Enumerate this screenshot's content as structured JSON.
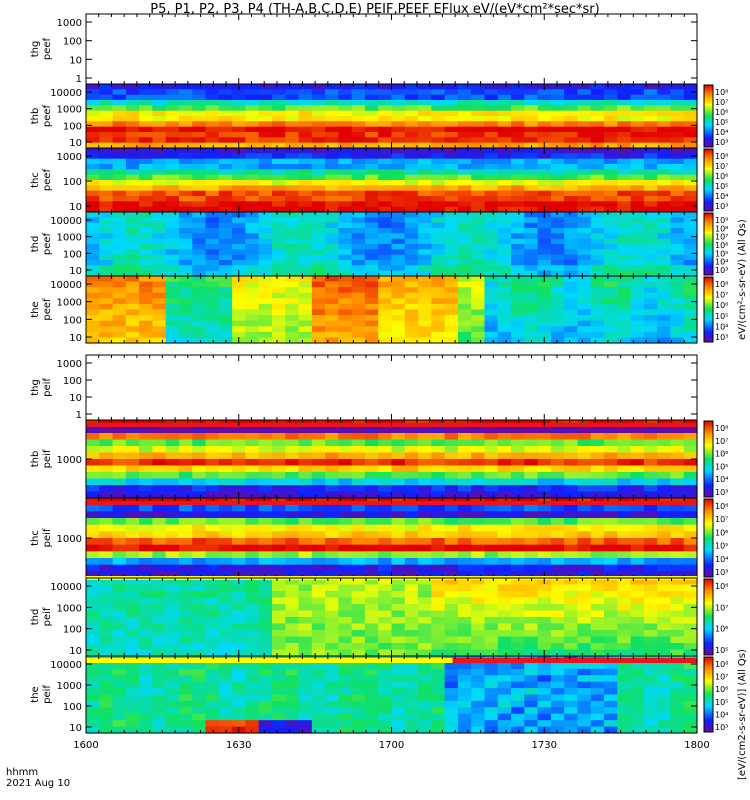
{
  "title": "P5, P1, P2, P3, P4 (TH-A,B,C,D,E) PEIF,PEEF EFlux eV/(eV*cm²*sec*sr)",
  "corner": {
    "var_label": "hhmm",
    "date_label": "2021 Aug 10"
  },
  "colorbar_text": {
    "peef_right": "eV/(cm²-s-sr-eV) (All Qs)",
    "peif_right": "[eV/(cm2-s-sr-eV)] (All Qs)"
  },
  "chart_data": {
    "type": "heatmap",
    "xlabel": "",
    "x_ticks": [
      "1600",
      "1630",
      "1700",
      "1730",
      "1800"
    ],
    "panels": [
      {
        "id": "thg-peef",
        "ylabel": [
          "thg",
          "peef"
        ],
        "yticks": [
          "1000",
          "100",
          "10",
          "1"
        ],
        "has_data": false,
        "colorbar": false
      },
      {
        "id": "thb-peef",
        "ylabel": [
          "thb",
          "peef"
        ],
        "yticks": [
          "10000",
          "1000",
          "100",
          "10"
        ],
        "has_data": true,
        "colorbar": true,
        "cb_ticks": [
          "10⁸",
          "10⁷",
          "10⁶",
          "10⁵",
          "10⁴",
          "10³"
        ]
      },
      {
        "id": "thc-peef",
        "ylabel": [
          "thc",
          "peef"
        ],
        "yticks": [
          "1000",
          "100",
          "10"
        ],
        "has_data": true,
        "colorbar": true,
        "cb_ticks": [
          "10⁸",
          "10⁷",
          "10⁶",
          "10⁵",
          "10⁴",
          "10³"
        ]
      },
      {
        "id": "thd-peef",
        "ylabel": [
          "thd",
          "peef"
        ],
        "yticks": [
          "10000",
          "1000",
          "100",
          "10"
        ],
        "has_data": true,
        "colorbar": true,
        "cb_ticks": [
          "10⁹",
          "10⁸",
          "10⁷",
          "10⁶",
          "10⁵",
          "10⁴",
          "10³"
        ]
      },
      {
        "id": "the-peef",
        "ylabel": [
          "the",
          "peef"
        ],
        "yticks": [
          "10000",
          "1000",
          "100",
          "10"
        ],
        "has_data": true,
        "colorbar": true,
        "cb_ticks": [
          "10⁸",
          "10⁷",
          "10⁶",
          "10⁵",
          "10⁴",
          "10³"
        ]
      },
      {
        "id": "thg-peif",
        "ylabel": [
          "thg",
          "peif"
        ],
        "yticks": [
          "1000",
          "100",
          "10",
          "1"
        ],
        "has_data": false,
        "colorbar": false
      },
      {
        "id": "thb-peif",
        "ylabel": [
          "thb",
          "peif"
        ],
        "yticks": [
          "1000"
        ],
        "has_data": true,
        "colorbar": true,
        "cb_ticks": [
          "10⁸",
          "10⁷",
          "10⁶",
          "10⁵",
          "10⁴",
          "10³"
        ]
      },
      {
        "id": "thc-peif",
        "ylabel": [
          "thc",
          "peif"
        ],
        "yticks": [
          "1000"
        ],
        "has_data": true,
        "colorbar": true,
        "cb_ticks": [
          "10⁸",
          "10⁷",
          "10⁶",
          "10⁵",
          "10⁴",
          "10³"
        ]
      },
      {
        "id": "thd-peif",
        "ylabel": [
          "thd",
          "peif"
        ],
        "yticks": [
          "10000",
          "1000",
          "100",
          "10"
        ],
        "has_data": true,
        "colorbar": true,
        "cb_ticks": [
          "10⁸",
          "10⁷",
          "10⁶",
          "10⁵"
        ]
      },
      {
        "id": "the-peif",
        "ylabel": [
          "the",
          "peif"
        ],
        "yticks": [
          "10000",
          "1000",
          "100",
          "10"
        ],
        "has_data": true,
        "colorbar": true,
        "cb_ticks": [
          "10⁸",
          "10⁷",
          "10⁶",
          "10⁵",
          "10⁴",
          "10³"
        ]
      }
    ],
    "colors": {
      "frame": "#000000",
      "background": "#ffffff",
      "flag_red": "#e8141e",
      "flag_yellow": "#ffff00"
    }
  }
}
